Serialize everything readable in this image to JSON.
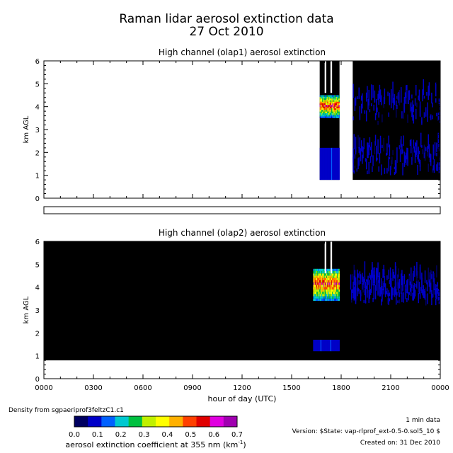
{
  "chart_data": [
    {
      "type": "heatmap",
      "title": "High channel (olap1) aerosol extinction",
      "xlabel": "",
      "ylabel": "km AGL",
      "xlim": [
        0,
        24
      ],
      "ylim": [
        0,
        6
      ],
      "yticks": [
        "0",
        "1",
        "2",
        "3",
        "4",
        "5",
        "6"
      ],
      "data_segments": [
        {
          "x_start": 16.7,
          "x_end": 17.9,
          "y_start": 0.8,
          "y_end": 6,
          "peak_layer_km": [
            3.5,
            4.5
          ],
          "peak_value": 0.6
        },
        {
          "x_start": 18.7,
          "x_end": 24,
          "y_start": 0.8,
          "y_end": 6,
          "peak_value": 0.1
        }
      ]
    },
    {
      "type": "heatmap",
      "title": "High channel (olap2) aerosol extinction",
      "xlabel": "hour of day (UTC)",
      "ylabel": "km AGL",
      "xlim": [
        0,
        24
      ],
      "ylim": [
        0,
        6
      ],
      "yticks": [
        "0",
        "1",
        "2",
        "3",
        "4",
        "5",
        "6"
      ],
      "xticks": [
        "0000",
        "0300",
        "0600",
        "0900",
        "1200",
        "1500",
        "1800",
        "2100",
        "0000"
      ],
      "data_segments": [
        {
          "x_start": 0,
          "x_end": 24,
          "y_start": 0.8,
          "y_end": 6,
          "value": 0
        },
        {
          "x_start": 16.3,
          "x_end": 17.9,
          "y_start": 3.4,
          "y_end": 4.8,
          "peak_value": 0.6
        },
        {
          "x_start": 18.5,
          "x_end": 24,
          "y_start": 3.2,
          "y_end": 4.5,
          "peak_value": 0.1
        }
      ]
    }
  ],
  "title_line1": "Raman lidar aerosol extinction data",
  "title_line2": "27 Oct 2010",
  "colorbar": {
    "ticks": [
      "0.0",
      "0.1",
      "0.2",
      "0.3",
      "0.4",
      "0.5",
      "0.6",
      "0.7"
    ],
    "label": "aerosol extinction coefficient at 355 nm (km",
    "label_exp": "-1",
    "label_close": ")",
    "range": [
      0,
      0.7
    ],
    "colors": [
      "#000060",
      "#0000c8",
      "#0060ff",
      "#00c8d0",
      "#00c040",
      "#c0f000",
      "#ffff00",
      "#ffb000",
      "#ff4000",
      "#e00000",
      "#e000e0",
      "#a000b0"
    ]
  },
  "footer": {
    "density": "Density from sgpaeriprof3feltzC1.c1",
    "resolution": "1 min data",
    "version": "Version: $State: vap-rlprof_ext-0.5-0.sol5_10 $",
    "created": "Created on: 31 Dec 2010"
  }
}
